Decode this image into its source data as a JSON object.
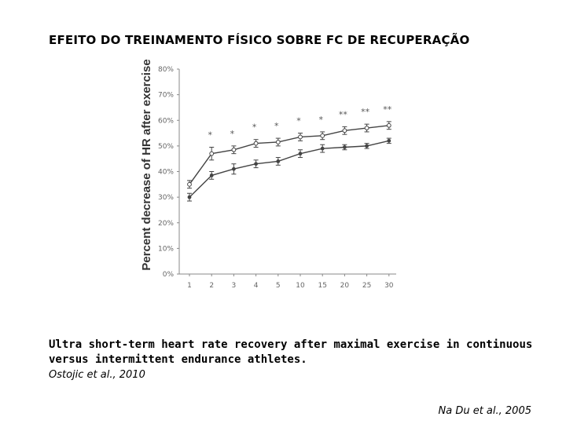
{
  "slide": {
    "title": "EFEITO DO TREINAMENTO FÍSICO SOBRE FC DE RECUPERAÇÃO",
    "caption": "Ultra short-term heart rate recovery after maximal exercise in continuous versus intermittent endurance athletes.",
    "citation_primary": "Ostojic et al., 2010",
    "citation_secondary": "Na Du et al., 2005"
  },
  "chart_data": {
    "type": "line",
    "title": "",
    "xlabel": "",
    "ylabel": "Percent decrease of HR after exercise",
    "categories": [
      "1",
      "2",
      "3",
      "4",
      "5",
      "10",
      "15",
      "20",
      "25",
      "30"
    ],
    "yticks": [
      "0%",
      "10%",
      "20%",
      "30%",
      "40%",
      "50%",
      "60%",
      "70%",
      "80%"
    ],
    "ylim": [
      0,
      80
    ],
    "grid": false,
    "legend": "none",
    "series": [
      {
        "marker": "open-circle",
        "values": [
          35,
          47,
          48.5,
          51,
          51.5,
          53.5,
          54,
          56,
          57,
          58
        ],
        "errors": [
          1.5,
          2.5,
          1.5,
          1.5,
          1.5,
          1.5,
          1.5,
          1.5,
          1.5,
          1.5
        ]
      },
      {
        "marker": "filled-circle",
        "values": [
          30,
          38.5,
          41,
          43,
          44,
          47,
          49,
          49.5,
          50,
          52
        ],
        "errors": [
          1.5,
          1.5,
          2,
          1.5,
          1.5,
          1.5,
          1.5,
          1,
          1,
          1
        ]
      }
    ],
    "annotations": [
      "*",
      "*",
      "*",
      "*",
      "*",
      "*",
      "**",
      "**",
      "**"
    ],
    "annotation_categories": [
      "2",
      "3",
      "4",
      "5",
      "10",
      "15",
      "20",
      "25",
      "30"
    ],
    "colors": {
      "line": "#444444",
      "axis": "#888888",
      "tick_text": "#666666"
    }
  }
}
